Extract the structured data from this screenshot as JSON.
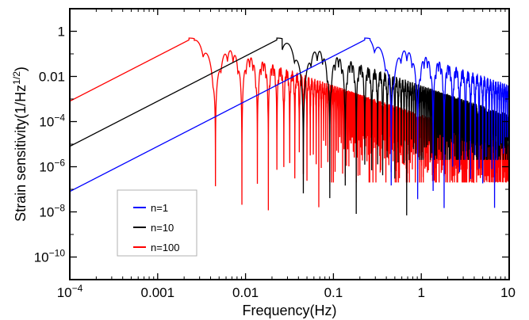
{
  "chart_data": {
    "type": "line",
    "title": "",
    "xlabel": "Frequency(Hz)",
    "ylabel_main": "Strain sensitivity(1/Hz",
    "ylabel_exp": "1/2",
    "ylabel_close": ")",
    "xscale": "log",
    "yscale": "log",
    "xlim": [
      0.0001,
      10
    ],
    "ylim": [
      1e-11,
      10
    ],
    "grid": false,
    "legend_position": "lower-left",
    "x_ticks": [
      {
        "value": 0.0001,
        "base": "10",
        "exp": "−4"
      },
      {
        "value": 0.001,
        "text": "0.001"
      },
      {
        "value": 0.01,
        "text": "0.01"
      },
      {
        "value": 0.1,
        "text": "0.1"
      },
      {
        "value": 1,
        "text": "1"
      },
      {
        "value": 10,
        "text": "10"
      }
    ],
    "y_ticks": [
      {
        "value": 1,
        "text": "1"
      },
      {
        "value": 0.01,
        "text": "0.01"
      },
      {
        "value": 0.0001,
        "base": "10",
        "exp": "−4"
      },
      {
        "value": 1e-06,
        "base": "10",
        "exp": "−6"
      },
      {
        "value": 1e-08,
        "base": "10",
        "exp": "−8"
      },
      {
        "value": 1e-10,
        "base": "10",
        "exp": "−10"
      }
    ],
    "series": [
      {
        "name": "n=1",
        "color": "#0000ff",
        "peak_freq": 0.25,
        "peak_value": 0.5,
        "floor_value": 0.0001
      },
      {
        "name": "n=10",
        "color": "#000000",
        "peak_freq": 0.025,
        "peak_value": 0.5,
        "floor_value": 1e-05
      },
      {
        "name": "n=100",
        "color": "#ff0000",
        "peak_freq": 0.0025,
        "peak_value": 0.5,
        "floor_value": 1e-06
      }
    ]
  }
}
